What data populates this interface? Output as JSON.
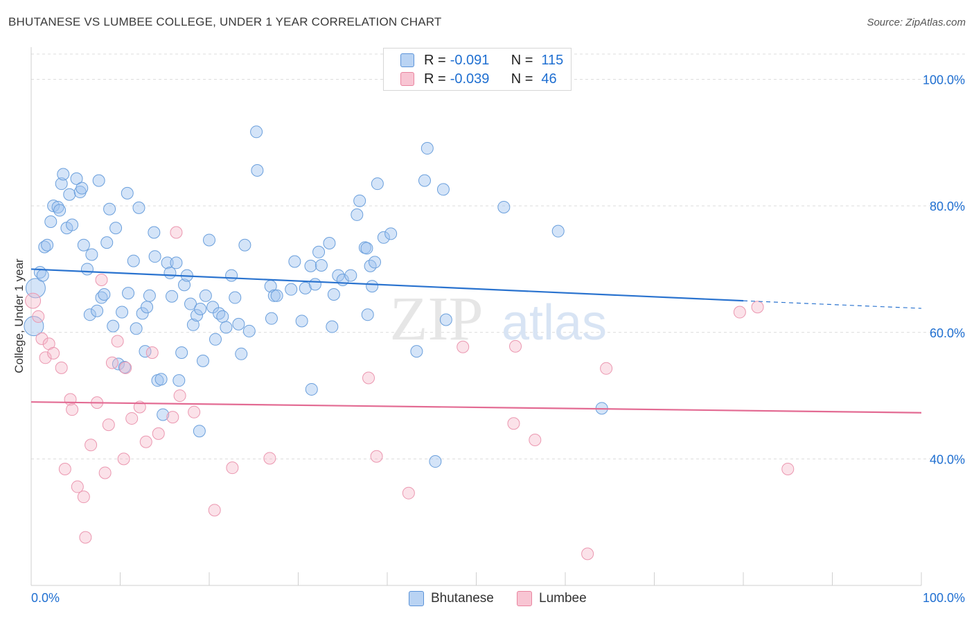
{
  "title": "BHUTANESE VS LUMBEE COLLEGE, UNDER 1 YEAR CORRELATION CHART",
  "source": "Source: ZipAtlas.com",
  "watermark": {
    "zip": "ZIP",
    "atlas": "atlas"
  },
  "legend": {
    "rows": [
      {
        "r_label": "R =",
        "r_value": "-0.091",
        "n_label": "N =",
        "n_value": "115"
      },
      {
        "r_label": "R =",
        "r_value": "-0.039",
        "n_label": "N =",
        "n_value": "46"
      }
    ]
  },
  "chart_data": {
    "type": "scatter",
    "title": "BHUTANESE VS LUMBEE COLLEGE, UNDER 1 YEAR CORRELATION CHART",
    "xlabel": "",
    "ylabel": "College, Under 1 year",
    "xlim": [
      0,
      100
    ],
    "ylim": [
      20,
      104
    ],
    "x_tick_labels": [
      "0.0%",
      "100.0%"
    ],
    "y_ticks": [
      40,
      60,
      80,
      100
    ],
    "y_tick_labels": [
      "40.0%",
      "60.0%",
      "80.0%",
      "100.0%"
    ],
    "grid": true,
    "colors": {
      "bhutanese": "#5b93d8",
      "lumbee": "#e9849f",
      "tick": "#1f6fd1"
    },
    "series": [
      {
        "name": "Bhutanese",
        "r": -0.091,
        "n": 115,
        "trend": {
          "x0": 0,
          "y0": 70.0,
          "x1": 80,
          "y1": 65.0,
          "dash_to_x": 100,
          "dash_to_y": 63.8
        },
        "points": [
          [
            0.3,
            61
          ],
          [
            0.5,
            67
          ],
          [
            1,
            69.5
          ],
          [
            1.3,
            69
          ],
          [
            1.5,
            73.5
          ],
          [
            1.8,
            73.8
          ],
          [
            2.2,
            77.5
          ],
          [
            2.5,
            80
          ],
          [
            3,
            79.8
          ],
          [
            3.2,
            79.3
          ],
          [
            3.4,
            83.5
          ],
          [
            3.6,
            85
          ],
          [
            4,
            76.5
          ],
          [
            4.3,
            81.8
          ],
          [
            4.6,
            77
          ],
          [
            5.1,
            84.3
          ],
          [
            5.5,
            82.2
          ],
          [
            5.7,
            82.8
          ],
          [
            5.9,
            73.8
          ],
          [
            6.3,
            70
          ],
          [
            6.6,
            62.8
          ],
          [
            6.8,
            72.3
          ],
          [
            7.4,
            63.4
          ],
          [
            7.6,
            84
          ],
          [
            7.9,
            65.5
          ],
          [
            8.2,
            66
          ],
          [
            8.5,
            74.2
          ],
          [
            8.8,
            79.5
          ],
          [
            9.2,
            61
          ],
          [
            9.5,
            76.5
          ],
          [
            9.8,
            55
          ],
          [
            10.2,
            63.2
          ],
          [
            10.5,
            54.5
          ],
          [
            10.8,
            82
          ],
          [
            10.9,
            66.2
          ],
          [
            11.5,
            71.3
          ],
          [
            11.8,
            60.6
          ],
          [
            12.1,
            79.7
          ],
          [
            12.5,
            63
          ],
          [
            12.8,
            57
          ],
          [
            13,
            64
          ],
          [
            13.3,
            65.8
          ],
          [
            13.8,
            75.8
          ],
          [
            13.9,
            72
          ],
          [
            14.2,
            52.4
          ],
          [
            14.6,
            52.6
          ],
          [
            14.8,
            47
          ],
          [
            15.3,
            71
          ],
          [
            15.6,
            69.4
          ],
          [
            15.8,
            65.7
          ],
          [
            16.3,
            71
          ],
          [
            16.6,
            52.4
          ],
          [
            16.9,
            56.8
          ],
          [
            17.2,
            67.5
          ],
          [
            17.5,
            69
          ],
          [
            17.9,
            64.5
          ],
          [
            18.2,
            61.2
          ],
          [
            18.6,
            62.7
          ],
          [
            18.9,
            44.4
          ],
          [
            19,
            63.7
          ],
          [
            19.3,
            55.5
          ],
          [
            19.6,
            65.8
          ],
          [
            20,
            74.6
          ],
          [
            20.4,
            64
          ],
          [
            20.7,
            58.9
          ],
          [
            21.1,
            63
          ],
          [
            21.5,
            62.5
          ],
          [
            21.9,
            60.8
          ],
          [
            22.5,
            69
          ],
          [
            22.9,
            65.5
          ],
          [
            23.3,
            61.3
          ],
          [
            23.6,
            56.6
          ],
          [
            24,
            73.8
          ],
          [
            24.5,
            60.2
          ],
          [
            25.3,
            91.7
          ],
          [
            25.4,
            85.6
          ],
          [
            26.9,
            67.3
          ],
          [
            27,
            62.2
          ],
          [
            27.3,
            65.8
          ],
          [
            27.6,
            65.8
          ],
          [
            29.2,
            66.8
          ],
          [
            29.6,
            71.2
          ],
          [
            30.4,
            61.8
          ],
          [
            30.8,
            67
          ],
          [
            31.4,
            70.5
          ],
          [
            31.5,
            51
          ],
          [
            31.9,
            67.6
          ],
          [
            32.3,
            72.7
          ],
          [
            32.6,
            70.6
          ],
          [
            33.5,
            74.1
          ],
          [
            33.8,
            60.9
          ],
          [
            34,
            66
          ],
          [
            34.5,
            69
          ],
          [
            35,
            68.3
          ],
          [
            35.9,
            69
          ],
          [
            36.6,
            78.6
          ],
          [
            36.9,
            80.8
          ],
          [
            37.5,
            73.4
          ],
          [
            37.7,
            73.3
          ],
          [
            37.8,
            62.8
          ],
          [
            38.1,
            70.5
          ],
          [
            38.3,
            67.3
          ],
          [
            38.6,
            71.1
          ],
          [
            38.9,
            83.5
          ],
          [
            39.6,
            75
          ],
          [
            40.4,
            75.6
          ],
          [
            43.3,
            57
          ],
          [
            44.2,
            84
          ],
          [
            44.5,
            89.1
          ],
          [
            45.4,
            39.6
          ],
          [
            46.3,
            82.6
          ],
          [
            46.6,
            62
          ],
          [
            53.1,
            79.8
          ],
          [
            59.2,
            76
          ],
          [
            64.1,
            48
          ]
        ]
      },
      {
        "name": "Lumbee",
        "r": -0.039,
        "n": 46,
        "trend": {
          "x0": 0,
          "y0": 49.0,
          "x1": 100,
          "y1": 47.3
        },
        "points": [
          [
            0.2,
            65
          ],
          [
            0.8,
            62.5
          ],
          [
            1.2,
            59
          ],
          [
            1.6,
            56
          ],
          [
            2,
            58.2
          ],
          [
            2.5,
            56.7
          ],
          [
            3.4,
            54.4
          ],
          [
            3.8,
            38.4
          ],
          [
            4.4,
            49.4
          ],
          [
            4.6,
            47.8
          ],
          [
            5.2,
            35.6
          ],
          [
            5.9,
            34
          ],
          [
            6.1,
            27.6
          ],
          [
            6.7,
            42.2
          ],
          [
            7.4,
            48.9
          ],
          [
            7.9,
            68.3
          ],
          [
            8.3,
            37.8
          ],
          [
            8.7,
            45.4
          ],
          [
            9.1,
            55.2
          ],
          [
            9.7,
            58.6
          ],
          [
            10.6,
            54.4
          ],
          [
            10.4,
            40
          ],
          [
            11.3,
            46.4
          ],
          [
            12.2,
            48.2
          ],
          [
            12.9,
            42.7
          ],
          [
            13.6,
            56.8
          ],
          [
            14.3,
            44
          ],
          [
            15.9,
            46.6
          ],
          [
            16.3,
            75.8
          ],
          [
            16.7,
            50
          ],
          [
            18.3,
            47.4
          ],
          [
            20.6,
            31.9
          ],
          [
            22.6,
            38.6
          ],
          [
            26.8,
            40.1
          ],
          [
            37.9,
            52.8
          ],
          [
            38.8,
            40.4
          ],
          [
            42.4,
            34.6
          ],
          [
            48.5,
            57.7
          ],
          [
            54.2,
            45.6
          ],
          [
            54.4,
            57.8
          ],
          [
            56.6,
            43
          ],
          [
            62.5,
            25
          ],
          [
            64.6,
            54.3
          ],
          [
            79.6,
            63.2
          ],
          [
            81.6,
            64
          ],
          [
            85,
            38.4
          ]
        ]
      }
    ]
  }
}
